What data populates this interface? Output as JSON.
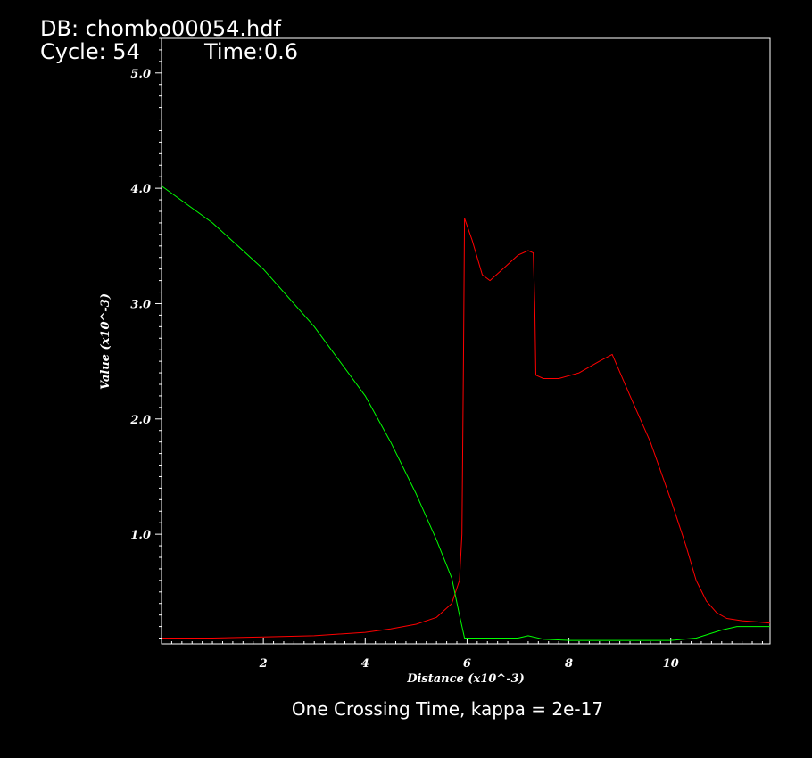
{
  "header": {
    "db": "DB: chombo00054.hdf",
    "cycle": "Cycle: 54",
    "time": "Time:0.6"
  },
  "caption": "One Crossing Time, kappa = 2e-17",
  "chart_data": {
    "type": "line",
    "xlabel": "Distance (x10^-3)",
    "ylabel": "Value (x10^-3)",
    "xlim": [
      0,
      11.95
    ],
    "ylim": [
      0.05,
      5.3
    ],
    "x_ticks": [
      "2",
      "4",
      "6",
      "8",
      "10"
    ],
    "x_tick_values": [
      2,
      4,
      6,
      8,
      10
    ],
    "y_ticks": [
      "1.0",
      "2.0",
      "3.0",
      "4.0",
      "5.0"
    ],
    "y_tick_values": [
      1,
      2,
      3,
      4,
      5
    ],
    "grid": false,
    "series": [
      {
        "color": "#ff0000",
        "x": [
          0,
          1,
          2,
          3,
          4,
          4.5,
          5,
          5.4,
          5.7,
          5.85,
          5.9,
          5.93,
          5.95,
          6.1,
          6.3,
          6.45,
          6.7,
          7.0,
          7.2,
          7.3,
          7.33,
          7.35,
          7.5,
          7.8,
          8.2,
          8.6,
          8.85,
          9.2,
          9.6,
          10.0,
          10.3,
          10.5,
          10.7,
          10.9,
          11.1,
          11.4,
          11.7,
          11.95
        ],
        "y": [
          0.1,
          0.1,
          0.11,
          0.12,
          0.15,
          0.18,
          0.22,
          0.28,
          0.4,
          0.6,
          1.0,
          2.5,
          3.74,
          3.55,
          3.25,
          3.2,
          3.3,
          3.42,
          3.46,
          3.44,
          3.0,
          2.38,
          2.35,
          2.35,
          2.4,
          2.5,
          2.56,
          2.2,
          1.8,
          1.3,
          0.9,
          0.6,
          0.42,
          0.32,
          0.27,
          0.25,
          0.24,
          0.23
        ]
      },
      {
        "color": "#00ff00",
        "x": [
          0,
          1,
          2,
          3,
          4,
          4.5,
          5,
          5.4,
          5.7,
          5.85,
          5.95,
          6.1,
          6.5,
          7.0,
          7.2,
          7.5,
          8.0,
          9.0,
          10.0,
          10.5,
          11.0,
          11.3,
          11.95
        ],
        "y": [
          4.02,
          3.7,
          3.3,
          2.8,
          2.2,
          1.8,
          1.35,
          0.95,
          0.62,
          0.3,
          0.1,
          0.1,
          0.1,
          0.1,
          0.12,
          0.09,
          0.08,
          0.08,
          0.08,
          0.1,
          0.17,
          0.2,
          0.2
        ]
      }
    ]
  }
}
